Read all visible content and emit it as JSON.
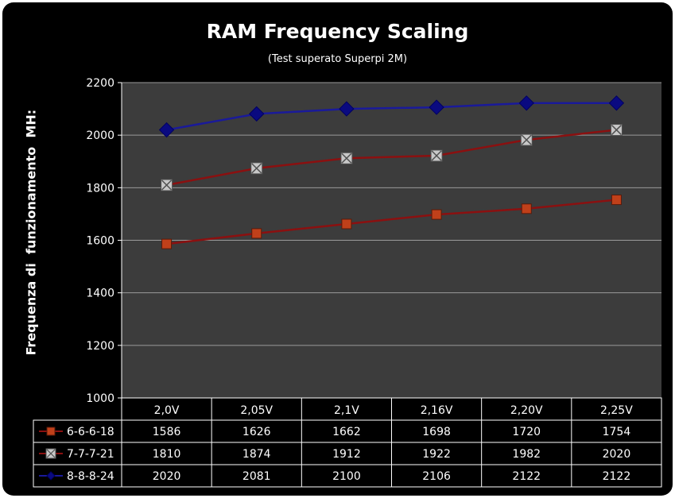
{
  "chart_data": {
    "type": "line",
    "title": "RAM Frequency Scaling",
    "subtitle": "(Test superato Superpi 2M)",
    "ylabel": "Frequenza di  funzionamento  MH:",
    "xlabel": "",
    "ylim": [
      1000,
      2200
    ],
    "yticks": [
      1000,
      1200,
      1400,
      1600,
      1800,
      2000,
      2200
    ],
    "grid": true,
    "legend": "data-table-left",
    "categories": [
      "2,0V",
      "2,05V",
      "2,1V",
      "2,16V",
      "2,20V",
      "2,25V"
    ],
    "series": [
      {
        "name": "6-6-6-18",
        "values": [
          1586,
          1626,
          1662,
          1698,
          1720,
          1754
        ],
        "marker": "square",
        "line_color": "#8b1010",
        "marker_color": "#c0401a"
      },
      {
        "name": "7-7-7-21",
        "values": [
          1810,
          1874,
          1912,
          1922,
          1982,
          2020
        ],
        "marker": "cross-square",
        "line_color": "#8b1010",
        "marker_color": "#c8c8c8"
      },
      {
        "name": "8-8-8-24",
        "values": [
          2020,
          2081,
          2100,
          2106,
          2122,
          2122
        ],
        "marker": "diamond",
        "line_color": "#1a1a9a",
        "marker_color": "#0a0a80"
      }
    ],
    "colors": {
      "background": "#000000",
      "plot_area": "#3c3c3c",
      "gridline": "#9a9a9a"
    }
  }
}
